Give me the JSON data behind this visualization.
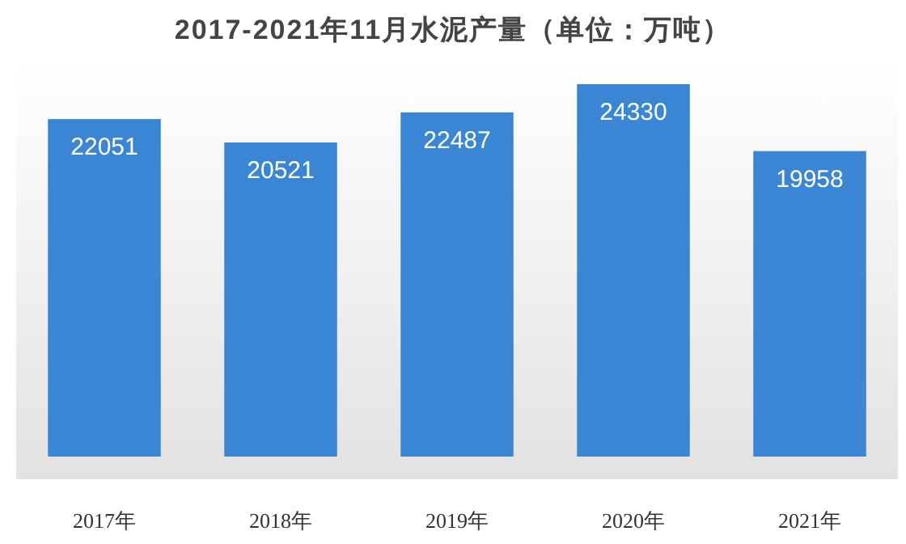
{
  "chart_data": {
    "type": "bar",
    "title": "2017-2021年11月水泥产量（单位：万吨）",
    "categories": [
      "2017年",
      "2018年",
      "2019年",
      "2020年",
      "2021年"
    ],
    "values": [
      22051,
      20521,
      22487,
      24330,
      19958
    ],
    "color": "#3b86d4",
    "data_labels": true
  }
}
